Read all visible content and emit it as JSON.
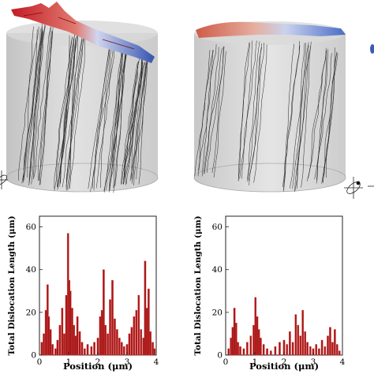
{
  "figure": {
    "colors": {
      "bar_fill": "#a01818",
      "bar_highlight": "#e03a3a",
      "cylinder_fill": "#cfcfcf",
      "dislocation_line": "#1a1a1a",
      "surface_red": "#c8202a",
      "surface_blue": "#3a5cb8"
    },
    "icons": [
      "stress-ellipse-icon"
    ]
  },
  "chart_data": [
    {
      "type": "bar",
      "xlabel": "Position (μm)",
      "ylabel": "Total Dislocation Length (μm)",
      "xlim": [
        0,
        4
      ],
      "ylim": [
        0,
        65
      ],
      "xticks": [
        "0",
        "1",
        "2",
        "3",
        "4"
      ],
      "yticks": [
        "0",
        "20",
        "40",
        "60"
      ],
      "grid": false,
      "x": [
        0.08,
        0.15,
        0.22,
        0.28,
        0.32,
        0.38,
        0.45,
        0.55,
        0.62,
        0.7,
        0.78,
        0.85,
        0.92,
        0.98,
        1.02,
        1.06,
        1.12,
        1.18,
        1.24,
        1.3,
        1.38,
        1.46,
        1.55,
        1.65,
        1.78,
        1.88,
        2.0,
        2.08,
        2.14,
        2.2,
        2.26,
        2.34,
        2.42,
        2.5,
        2.58,
        2.66,
        2.74,
        2.82,
        2.9,
        3.0,
        3.08,
        3.16,
        3.24,
        3.32,
        3.4,
        3.48,
        3.56,
        3.62,
        3.68,
        3.74,
        3.8,
        3.88,
        3.94
      ],
      "values": [
        6,
        10,
        21,
        33,
        18,
        12,
        5,
        3,
        7,
        14,
        22,
        10,
        28,
        57,
        35,
        30,
        22,
        14,
        9,
        18,
        11,
        6,
        3,
        5,
        4,
        6,
        8,
        18,
        21,
        40,
        14,
        10,
        26,
        35,
        17,
        12,
        8,
        6,
        4,
        5,
        10,
        13,
        18,
        21,
        28,
        12,
        8,
        44,
        22,
        31,
        11,
        6,
        3
      ]
    },
    {
      "type": "bar",
      "xlabel": "Position (μm)",
      "ylabel": "Total Dislocation Length (μm)",
      "xlim": [
        0,
        4
      ],
      "ylim": [
        0,
        65
      ],
      "xticks": [
        "0",
        "1",
        "2",
        "3",
        "4"
      ],
      "yticks": [
        "0",
        "20",
        "40",
        "60"
      ],
      "grid": false,
      "x": [
        0.1,
        0.18,
        0.24,
        0.3,
        0.36,
        0.42,
        0.5,
        0.62,
        0.74,
        0.86,
        0.96,
        1.02,
        1.08,
        1.14,
        1.2,
        1.3,
        1.42,
        1.55,
        1.7,
        1.85,
        2.0,
        2.1,
        2.2,
        2.3,
        2.4,
        2.48,
        2.56,
        2.64,
        2.72,
        2.8,
        2.9,
        3.0,
        3.1,
        3.2,
        3.3,
        3.4,
        3.5,
        3.58,
        3.66,
        3.74,
        3.82,
        3.9
      ],
      "values": [
        3,
        8,
        13,
        22,
        15,
        6,
        4,
        3,
        6,
        9,
        14,
        27,
        18,
        12,
        8,
        5,
        3,
        2,
        4,
        6,
        7,
        5,
        11,
        6,
        19,
        14,
        9,
        21,
        11,
        6,
        4,
        3,
        5,
        3,
        7,
        4,
        9,
        13,
        6,
        12,
        5,
        2
      ]
    }
  ]
}
